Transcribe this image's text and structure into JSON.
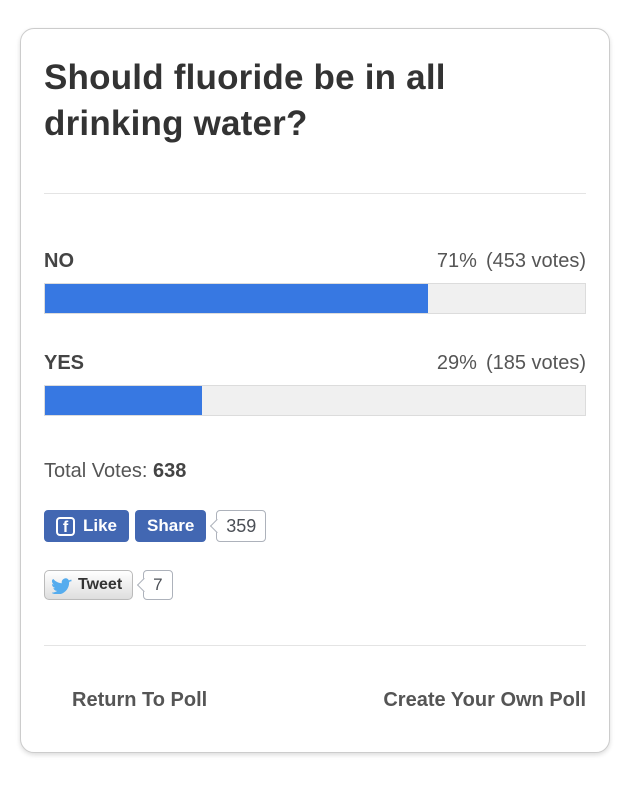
{
  "poll": {
    "question": "Should fluoride be in all drinking water?",
    "options": [
      {
        "label": "NO",
        "percent": "71%",
        "votes": "(453 votes)",
        "percent_value": 71
      },
      {
        "label": "YES",
        "percent": "29%",
        "votes": "(185 votes)",
        "percent_value": 29
      }
    ],
    "total_votes_label": "Total Votes:",
    "total_votes": "638",
    "bar_fill_color": "#3778e2",
    "bar_track_color": "#f0f0f0"
  },
  "social": {
    "facebook": {
      "icon": "facebook-f-icon",
      "like_label": "Like",
      "share_label": "Share",
      "share_count": "359",
      "brand_color": "#4267b2"
    },
    "twitter": {
      "icon": "twitter-bird-icon",
      "tweet_label": "Tweet",
      "tweet_count": "7",
      "brand_color": "#55acee"
    }
  },
  "footer": {
    "return_label": "Return To Poll",
    "create_label": "Create Your Own Poll"
  }
}
